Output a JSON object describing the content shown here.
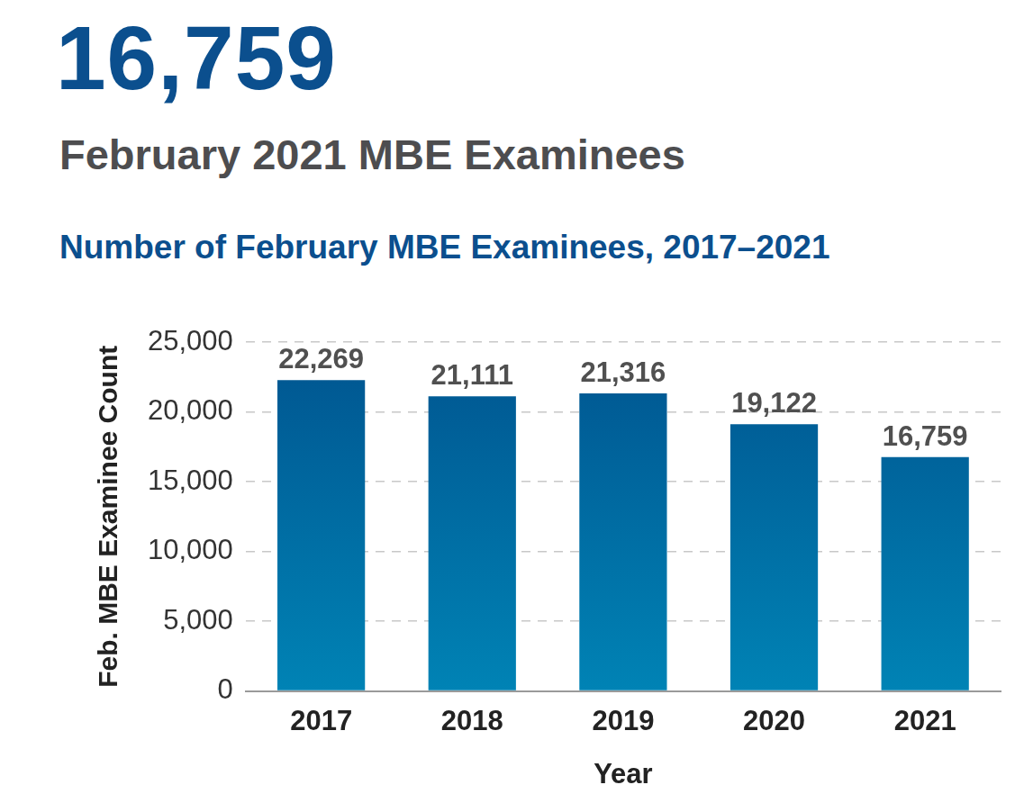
{
  "headline": "16,759",
  "subtitle": "February 2021 MBE Examinees",
  "chart_data": {
    "type": "bar",
    "title": "Number of February MBE Examinees, 2017–2021",
    "x_label": "Year",
    "y_label": "Feb. MBE Examinee Count",
    "categories": [
      "2017",
      "2018",
      "2019",
      "2020",
      "2021"
    ],
    "values": [
      22269,
      21111,
      21316,
      19122,
      16759
    ],
    "value_labels": [
      "22,269",
      "21,111",
      "21,316",
      "19,122",
      "16,759"
    ],
    "color": "#00548f",
    "ylim": [
      0,
      25000
    ],
    "yticks": [
      0,
      {
        "value": 5000,
        "label": "5,000"
      },
      {
        "value": 10000,
        "label": "10,000"
      },
      {
        "value": 15000,
        "label": "15,000"
      },
      {
        "value": 20000,
        "label": "20,000"
      },
      {
        "value": 25000,
        "label": "25,000"
      }
    ],
    "grid": true,
    "data_labels": true
  }
}
